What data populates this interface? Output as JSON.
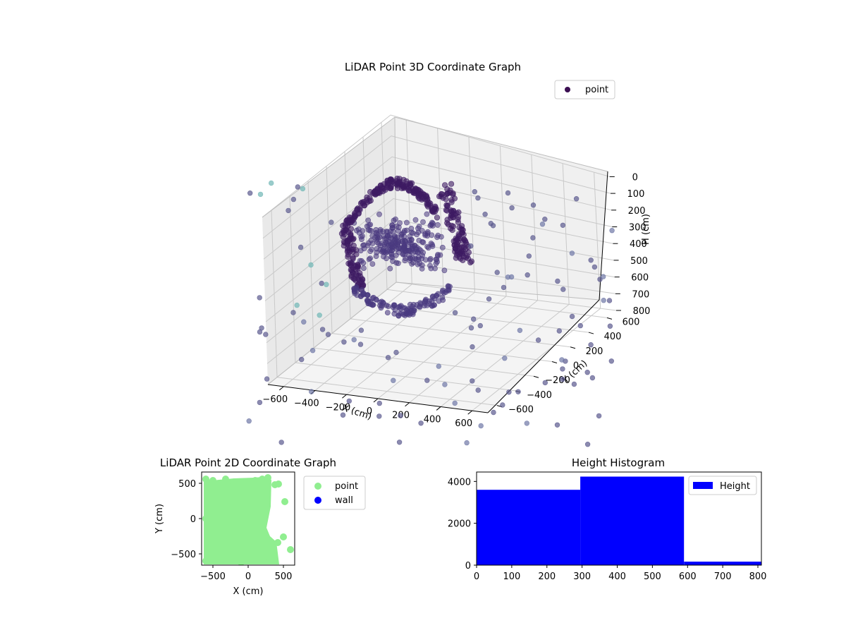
{
  "chart_data": [
    {
      "type": "scatter3d",
      "title": "LiDAR Point 3D Coordinate Graph",
      "xlabel": "X (cm)",
      "ylabel": "Y (cm)",
      "zlabel": "H (cm)",
      "xlim": [
        -700,
        700
      ],
      "ylim": [
        -700,
        700
      ],
      "zlim": [
        800,
        0
      ],
      "xticks": [
        -600,
        -400,
        -200,
        0,
        200,
        400,
        600
      ],
      "yticks": [
        -600,
        -400,
        -200,
        0,
        200,
        400,
        600
      ],
      "zticks": [
        0,
        100,
        200,
        300,
        400,
        500,
        600,
        700,
        800
      ],
      "grid": true,
      "colormap": "viridis",
      "legend": {
        "placement": "top-right",
        "entries": [
          {
            "label": "point",
            "color": "#3b0f52"
          }
        ]
      }
    },
    {
      "type": "scatter",
      "title": "LiDAR Point 2D Coordinate Graph",
      "xlabel": "X (cm)",
      "ylabel": "Y (cm)",
      "xlim": [
        -660,
        660
      ],
      "ylim": [
        -660,
        660
      ],
      "xticks": [
        -500,
        0,
        500
      ],
      "yticks": [
        -500,
        0,
        500
      ],
      "legend": {
        "placement": "outside-right",
        "entries": [
          {
            "label": "point",
            "color": "#90ee90"
          },
          {
            "label": "wall",
            "color": "#0000ff"
          }
        ]
      },
      "series": [
        {
          "name": "point",
          "color": "#90ee90",
          "points": [
            [
              -600,
              560
            ],
            [
              -500,
              540
            ],
            [
              -320,
              560
            ],
            [
              -200,
              520
            ],
            [
              -100,
              520
            ],
            [
              0,
              520
            ],
            [
              100,
              540
            ],
            [
              200,
              560
            ],
            [
              280,
              580
            ],
            [
              380,
              480
            ],
            [
              430,
              490
            ],
            [
              -600,
              -600
            ],
            [
              -500,
              -580
            ],
            [
              -300,
              -600
            ],
            [
              -100,
              -620
            ],
            [
              100,
              -600
            ],
            [
              300,
              -560
            ],
            [
              420,
              -340
            ],
            [
              500,
              -260
            ],
            [
              600,
              -440
            ],
            [
              520,
              240
            ],
            [
              -560,
              -200
            ],
            [
              -600,
              0
            ],
            [
              -580,
              200
            ],
            [
              -560,
              380
            ]
          ]
        },
        {
          "name": "wall",
          "color": "#0000ff",
          "points": []
        }
      ]
    },
    {
      "type": "histogram",
      "title": "Height Histogram",
      "xlim": [
        0,
        810
      ],
      "ylim": [
        0,
        4450
      ],
      "xticks": [
        0,
        100,
        200,
        300,
        400,
        500,
        600,
        700,
        800
      ],
      "yticks": [
        0,
        2000,
        4000
      ],
      "legend": {
        "placement": "top-right",
        "entries": [
          {
            "label": "Height",
            "color": "#0000ff"
          }
        ]
      },
      "bins": [
        {
          "from": 0,
          "to": 295,
          "count": 3600
        },
        {
          "from": 295,
          "to": 590,
          "count": 4230
        },
        {
          "from": 590,
          "to": 810,
          "count": 170
        }
      ]
    }
  ]
}
